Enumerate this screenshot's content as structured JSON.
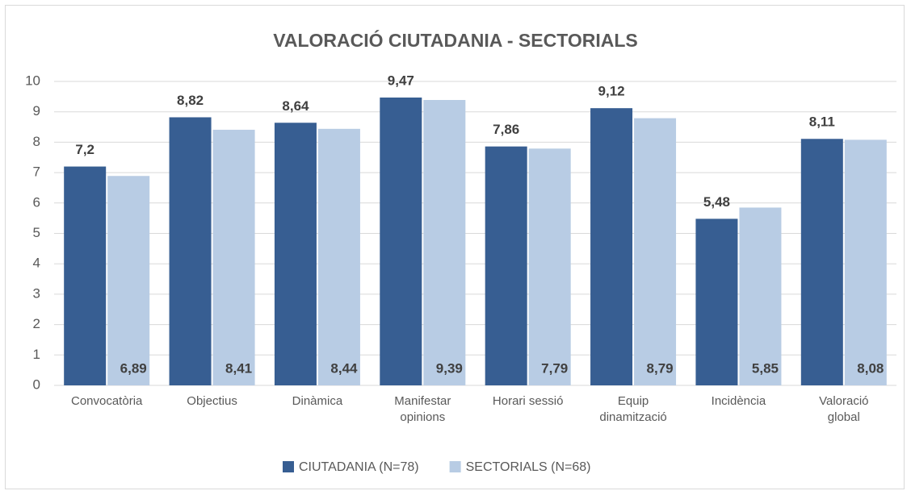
{
  "chart_data": {
    "type": "bar",
    "title": "VALORACIÓ CIUTADANIA - SECTORIALS",
    "categories": [
      "Convocatòria",
      "Objectius",
      "Dinàmica",
      "Manifestar opinions",
      "Horari sessió",
      "Equip dinamització",
      "Incidència",
      "Valoració global"
    ],
    "series": [
      {
        "name": "CIUTADANIA (N=78)",
        "color": "#375e92",
        "values": [
          7.2,
          8.82,
          8.64,
          9.47,
          7.86,
          9.12,
          5.48,
          8.11
        ],
        "value_labels": [
          "7,2",
          "8,82",
          "8,64",
          "9,47",
          "7,86",
          "9,12",
          "5,48",
          "8,11"
        ]
      },
      {
        "name": "SECTORIALS (N=68)",
        "color": "#b8cce4",
        "values": [
          6.89,
          8.41,
          8.44,
          9.39,
          7.79,
          8.79,
          5.85,
          8.08
        ],
        "value_labels": [
          "6,89",
          "8,41",
          "8,44",
          "9,39",
          "7,79",
          "8,79",
          "5,85",
          "8,08"
        ]
      }
    ],
    "ylim": [
      0,
      10
    ],
    "yticks": [
      0,
      1,
      2,
      3,
      4,
      5,
      6,
      7,
      8,
      9,
      10
    ],
    "grid": true,
    "legend": "bottom"
  }
}
